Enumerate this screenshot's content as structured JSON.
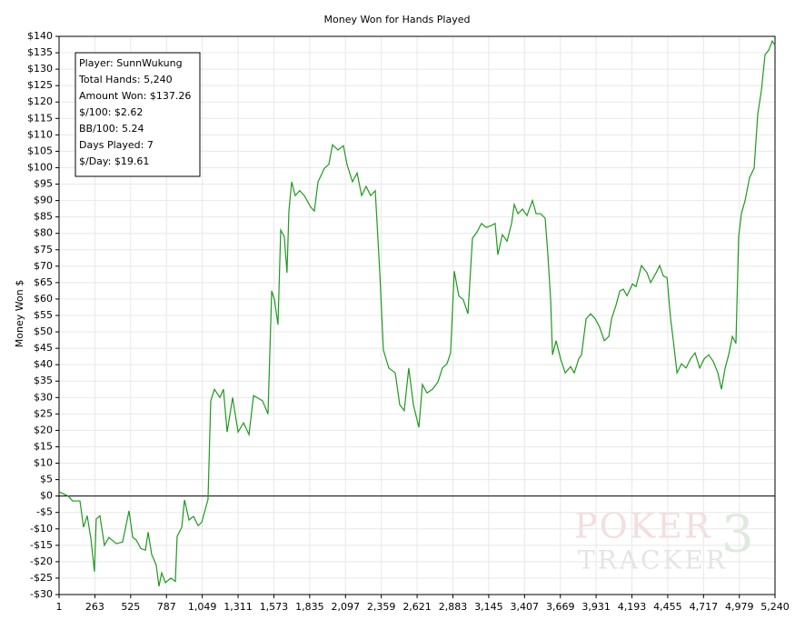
{
  "chart_data": {
    "type": "line",
    "title": "Money Won for Hands Played",
    "y_label": "Money Won $",
    "info": [
      "Player: SunnWukung",
      "Total Hands: 5,240",
      "Amount Won: $137.26",
      "$/100: $2.62",
      "BB/100: 5.24",
      "Days Played: 7",
      "$/Day: $19.61"
    ],
    "watermark": {
      "top": "POKER",
      "bottom": "TRACKER",
      "logo": "3"
    },
    "color": "#1e9a1e",
    "grid": true,
    "x": [
      1,
      67,
      100,
      154,
      180,
      207,
      234,
      260,
      273,
      300,
      333,
      366,
      420,
      466,
      513,
      540,
      566,
      600,
      633,
      653,
      679,
      712,
      732,
      752,
      779,
      819,
      852,
      865,
      899,
      919,
      952,
      985,
      1018,
      1045,
      1091,
      1111,
      1138,
      1178,
      1204,
      1231,
      1271,
      1311,
      1351,
      1391,
      1424,
      1490,
      1530,
      1557,
      1577,
      1603,
      1623,
      1649,
      1669,
      1683,
      1703,
      1729,
      1762,
      1796,
      1842,
      1869,
      1896,
      1942,
      1975,
      2002,
      2042,
      2082,
      2108,
      2148,
      2182,
      2215,
      2248,
      2281,
      2315,
      2348,
      2374,
      2414,
      2461,
      2494,
      2527,
      2560,
      2594,
      2634,
      2660,
      2693,
      2733,
      2773,
      2806,
      2840,
      2866,
      2893,
      2926,
      2959,
      2993,
      3013,
      3026,
      3059,
      3092,
      3126,
      3159,
      3192,
      3212,
      3245,
      3279,
      3312,
      3332,
      3359,
      3392,
      3425,
      3465,
      3492,
      3525,
      3558,
      3578,
      3598,
      3612,
      3638,
      3671,
      3705,
      3744,
      3771,
      3804,
      3824,
      3858,
      3891,
      3924,
      3957,
      3991,
      4024,
      4044,
      4077,
      4104,
      4130,
      4157,
      4197,
      4223,
      4263,
      4303,
      4330,
      4370,
      4396,
      4423,
      4450,
      4476,
      4496,
      4523,
      4556,
      4589,
      4622,
      4655,
      4689,
      4722,
      4755,
      4788,
      4822,
      4848,
      4875,
      4901,
      4928,
      4954,
      4974,
      4994,
      5021,
      5054,
      5087,
      5114,
      5140,
      5167,
      5194,
      5220,
      5240
    ],
    "values": [
      1.3,
      0,
      -1.5,
      -1.5,
      -9.5,
      -6,
      -13,
      -23,
      -7,
      -6,
      -15,
      -12.6,
      -14.5,
      -14,
      -4.5,
      -12.6,
      -13.4,
      -16,
      -16.5,
      -11,
      -17.8,
      -21,
      -27.5,
      -23.4,
      -26.4,
      -25,
      -26,
      -12.3,
      -9.5,
      -1.2,
      -7.3,
      -6.2,
      -9,
      -8,
      -1,
      29,
      32.5,
      30,
      32.5,
      19.5,
      30,
      19.5,
      22.3,
      18.7,
      30.6,
      29,
      25,
      62.5,
      59.8,
      52.2,
      81,
      79,
      68,
      86.8,
      95.7,
      91.5,
      93,
      91.5,
      88,
      86.8,
      95.7,
      99.8,
      101,
      107,
      105.4,
      106.7,
      101,
      95.7,
      98.4,
      91.5,
      94.3,
      91.5,
      93,
      68,
      44.5,
      39,
      37.5,
      27.8,
      26,
      39,
      27.8,
      20.9,
      34,
      31.4,
      32.5,
      34.7,
      39,
      40.3,
      43.6,
      68.5,
      61,
      59.8,
      55.5,
      69.4,
      78.5,
      80.4,
      83,
      81.8,
      82.3,
      83,
      73.5,
      79.6,
      77.6,
      83,
      88.8,
      86,
      87.4,
      85.4,
      90,
      86,
      86,
      84.6,
      73.5,
      59.8,
      43,
      47.3,
      41.8,
      37.5,
      39.4,
      37.5,
      41.8,
      43,
      54,
      55.5,
      54,
      51.4,
      47.3,
      48.6,
      54,
      58.2,
      62.4,
      63,
      61,
      64.6,
      63.8,
      70.2,
      68,
      65,
      68,
      70.2,
      67,
      66.5,
      54,
      47.3,
      37.5,
      40.3,
      39,
      41.8,
      43.6,
      39,
      41.8,
      43,
      41,
      37.5,
      32.5,
      39,
      43,
      48.6,
      46.5,
      79,
      86,
      90,
      97,
      99.8,
      116.4,
      123.4,
      134.4,
      135.8,
      138.6,
      137.26
    ],
    "xlim": [
      1,
      5240
    ],
    "xticks": [
      1,
      263,
      525,
      787,
      {
        "value": 1049,
        "label": "1,049"
      },
      {
        "value": 1311,
        "label": "1,311"
      },
      {
        "value": 1573,
        "label": "1,573"
      },
      {
        "value": 1835,
        "label": "1,835"
      },
      {
        "value": 2097,
        "label": "2,097"
      },
      {
        "value": 2359,
        "label": "2,359"
      },
      {
        "value": 2621,
        "label": "2,621"
      },
      {
        "value": 2883,
        "label": "2,883"
      },
      {
        "value": 3145,
        "label": "3,145"
      },
      {
        "value": 3407,
        "label": "3,407"
      },
      {
        "value": 3669,
        "label": "3,669"
      },
      {
        "value": 3931,
        "label": "3,931"
      },
      {
        "value": 4193,
        "label": "4,193"
      },
      {
        "value": 4455,
        "label": "4,455"
      },
      {
        "value": 4717,
        "label": "4,717"
      },
      {
        "value": 4979,
        "label": "4,979"
      },
      {
        "value": 5240,
        "label": "5,240"
      }
    ],
    "ylim": [
      -30,
      140
    ],
    "yticks": [
      {
        "value": -30,
        "label": "-$30"
      },
      {
        "value": -25,
        "label": "-$25"
      },
      {
        "value": -20,
        "label": "-$20"
      },
      {
        "value": -15,
        "label": "-$15"
      },
      {
        "value": -10,
        "label": "-$10"
      },
      {
        "value": -5,
        "label": "-$5"
      },
      {
        "value": 0,
        "label": "$0"
      },
      {
        "value": 5,
        "label": "$5"
      },
      {
        "value": 10,
        "label": "$10"
      },
      {
        "value": 15,
        "label": "$15"
      },
      {
        "value": 20,
        "label": "$20"
      },
      {
        "value": 25,
        "label": "$25"
      },
      {
        "value": 30,
        "label": "$30"
      },
      {
        "value": 35,
        "label": "$35"
      },
      {
        "value": 40,
        "label": "$40"
      },
      {
        "value": 45,
        "label": "$45"
      },
      {
        "value": 50,
        "label": "$50"
      },
      {
        "value": 55,
        "label": "$55"
      },
      {
        "value": 60,
        "label": "$60"
      },
      {
        "value": 65,
        "label": "$65"
      },
      {
        "value": 70,
        "label": "$70"
      },
      {
        "value": 75,
        "label": "$75"
      },
      {
        "value": 80,
        "label": "$80"
      },
      {
        "value": 85,
        "label": "$85"
      },
      {
        "value": 90,
        "label": "$90"
      },
      {
        "value": 95,
        "label": "$95"
      },
      {
        "value": 100,
        "label": "$100"
      },
      {
        "value": 105,
        "label": "$105"
      },
      {
        "value": 110,
        "label": "$110"
      },
      {
        "value": 115,
        "label": "$115"
      },
      {
        "value": 120,
        "label": "$120"
      },
      {
        "value": 125,
        "label": "$125"
      },
      {
        "value": 130,
        "label": "$130"
      },
      {
        "value": 135,
        "label": "$135"
      },
      {
        "value": 140,
        "label": "$140"
      }
    ]
  }
}
